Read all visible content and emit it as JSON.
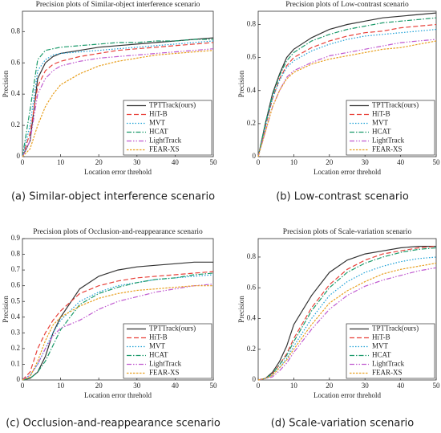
{
  "chart_data": [
    {
      "type": "line",
      "title": "Precision plots of Similar-object interference scenario",
      "caption": "(a) Similar-object interference scenario",
      "x_label": "Location error threhold",
      "y_label": "Precision",
      "x": [
        0,
        2,
        4,
        6,
        8,
        10,
        15,
        20,
        25,
        30,
        35,
        40,
        45,
        50
      ],
      "xlim": [
        0,
        50
      ],
      "xticks": [
        0,
        10,
        20,
        30,
        40,
        50
      ],
      "ylim": [
        0,
        0.93
      ],
      "yticks": [
        0,
        0.2,
        0.4,
        0.6,
        0.8
      ],
      "legend": "lower right",
      "series": [
        {
          "name": "TPTTrack(ours)",
          "color": "#333333",
          "style": "solid",
          "values": [
            0,
            0.1,
            0.5,
            0.6,
            0.64,
            0.66,
            0.68,
            0.7,
            0.71,
            0.72,
            0.73,
            0.74,
            0.75,
            0.76
          ]
        },
        {
          "name": "HiT-B",
          "color": "#e8413a",
          "style": "dashed",
          "values": [
            0,
            0.15,
            0.45,
            0.55,
            0.59,
            0.61,
            0.64,
            0.66,
            0.68,
            0.69,
            0.7,
            0.71,
            0.72,
            0.73
          ]
        },
        {
          "name": "MVT",
          "color": "#1a9fd6",
          "style": "dotted",
          "values": [
            0,
            0.2,
            0.55,
            0.62,
            0.65,
            0.66,
            0.67,
            0.68,
            0.69,
            0.7,
            0.71,
            0.72,
            0.73,
            0.74
          ]
        },
        {
          "name": "HCAT",
          "color": "#1a9a6a",
          "style": "dashdot",
          "values": [
            0,
            0.3,
            0.62,
            0.68,
            0.69,
            0.7,
            0.71,
            0.72,
            0.73,
            0.73,
            0.74,
            0.74,
            0.75,
            0.75
          ]
        },
        {
          "name": "LightTrack",
          "color": "#c05ad0",
          "style": "dashdotdot",
          "values": [
            0,
            0.1,
            0.4,
            0.5,
            0.55,
            0.58,
            0.61,
            0.63,
            0.64,
            0.65,
            0.66,
            0.67,
            0.68,
            0.69
          ]
        },
        {
          "name": "FEAR-XS",
          "color": "#e8a020",
          "style": "shortdash",
          "values": [
            0,
            0.05,
            0.2,
            0.32,
            0.4,
            0.46,
            0.53,
            0.58,
            0.61,
            0.63,
            0.65,
            0.66,
            0.67,
            0.68
          ]
        }
      ]
    },
    {
      "type": "line",
      "title": "Precision plots of Low-contrast scenario",
      "caption": "(b) Low-contrast scenario",
      "x_label": "Location error threhold",
      "y_label": "Precision",
      "x": [
        0,
        2,
        4,
        6,
        8,
        10,
        15,
        20,
        25,
        30,
        35,
        40,
        45,
        50
      ],
      "xlim": [
        0,
        50
      ],
      "xticks": [
        0,
        10,
        20,
        30,
        40,
        50
      ],
      "ylim": [
        0,
        0.88
      ],
      "yticks": [
        0,
        0.2,
        0.4,
        0.6,
        0.8
      ],
      "legend": "lower right",
      "series": [
        {
          "name": "TPTTrack(ours)",
          "color": "#333333",
          "style": "solid",
          "values": [
            0,
            0.2,
            0.38,
            0.5,
            0.6,
            0.65,
            0.72,
            0.77,
            0.8,
            0.82,
            0.84,
            0.85,
            0.86,
            0.87
          ]
        },
        {
          "name": "HiT-B",
          "color": "#e8413a",
          "style": "dashed",
          "values": [
            0,
            0.18,
            0.35,
            0.47,
            0.55,
            0.6,
            0.66,
            0.7,
            0.73,
            0.75,
            0.76,
            0.78,
            0.79,
            0.8
          ]
        },
        {
          "name": "MVT",
          "color": "#1a9fd6",
          "style": "dotted",
          "values": [
            0,
            0.18,
            0.35,
            0.46,
            0.54,
            0.58,
            0.64,
            0.68,
            0.71,
            0.73,
            0.74,
            0.75,
            0.76,
            0.77
          ]
        },
        {
          "name": "HCAT",
          "color": "#1a9a6a",
          "style": "dashdot",
          "values": [
            0,
            0.2,
            0.37,
            0.49,
            0.58,
            0.63,
            0.7,
            0.74,
            0.77,
            0.79,
            0.81,
            0.82,
            0.83,
            0.84
          ]
        },
        {
          "name": "LightTrack",
          "color": "#c05ad0",
          "style": "dashdotdot",
          "values": [
            0,
            0.15,
            0.3,
            0.4,
            0.48,
            0.52,
            0.57,
            0.61,
            0.63,
            0.65,
            0.67,
            0.69,
            0.7,
            0.71
          ]
        },
        {
          "name": "FEAR-XS",
          "color": "#e8a020",
          "style": "shortdash",
          "values": [
            0,
            0.15,
            0.3,
            0.4,
            0.47,
            0.51,
            0.56,
            0.59,
            0.61,
            0.63,
            0.65,
            0.66,
            0.68,
            0.7
          ]
        }
      ]
    },
    {
      "type": "line",
      "title": "Precision plots of Occlusion-and-reappearance scenario",
      "caption": "(c) Occlusion-and-reappearance scenario",
      "x_label": "Location error threhold",
      "y_label": "Precision",
      "x": [
        0,
        2,
        4,
        6,
        8,
        10,
        15,
        20,
        25,
        30,
        35,
        40,
        45,
        50
      ],
      "xlim": [
        0,
        50
      ],
      "xticks": [
        0,
        10,
        20,
        30,
        40,
        50
      ],
      "ylim": [
        0,
        0.9
      ],
      "yticks": [
        0,
        0.1,
        0.2,
        0.3,
        0.4,
        0.5,
        0.6,
        0.7,
        0.8,
        0.9
      ],
      "legend": "lower right",
      "series": [
        {
          "name": "TPTTrack(ours)",
          "color": "#333333",
          "style": "solid",
          "values": [
            0,
            0.01,
            0.05,
            0.15,
            0.3,
            0.4,
            0.58,
            0.66,
            0.7,
            0.72,
            0.73,
            0.74,
            0.75,
            0.75
          ]
        },
        {
          "name": "HiT-B",
          "color": "#e8413a",
          "style": "dashed",
          "values": [
            0,
            0.05,
            0.2,
            0.3,
            0.38,
            0.44,
            0.55,
            0.6,
            0.63,
            0.65,
            0.66,
            0.67,
            0.68,
            0.69
          ]
        },
        {
          "name": "MVT",
          "color": "#1a9fd6",
          "style": "dotted",
          "values": [
            0,
            0.03,
            0.1,
            0.2,
            0.3,
            0.38,
            0.5,
            0.56,
            0.6,
            0.62,
            0.64,
            0.65,
            0.66,
            0.67
          ]
        },
        {
          "name": "HCAT",
          "color": "#1a9a6a",
          "style": "dashdot",
          "values": [
            0,
            0.01,
            0.05,
            0.12,
            0.22,
            0.32,
            0.48,
            0.55,
            0.59,
            0.62,
            0.64,
            0.65,
            0.67,
            0.68
          ]
        },
        {
          "name": "LightTrack",
          "color": "#c05ad0",
          "style": "dashdotdot",
          "values": [
            0,
            0.03,
            0.1,
            0.2,
            0.28,
            0.33,
            0.38,
            0.45,
            0.5,
            0.53,
            0.56,
            0.58,
            0.6,
            0.61
          ]
        },
        {
          "name": "FEAR-XS",
          "color": "#e8a020",
          "style": "shortdash",
          "values": [
            0,
            0.02,
            0.12,
            0.25,
            0.35,
            0.4,
            0.47,
            0.52,
            0.55,
            0.57,
            0.58,
            0.59,
            0.6,
            0.6
          ]
        }
      ]
    },
    {
      "type": "line",
      "title": "Precision plots of Scale-variation scenario",
      "caption": "(d) Scale-variation scenario",
      "x_label": "Location error threhold",
      "y_label": "Precision",
      "x": [
        0,
        2,
        4,
        6,
        8,
        10,
        15,
        20,
        25,
        30,
        35,
        40,
        45,
        50
      ],
      "xlim": [
        0,
        50
      ],
      "xticks": [
        0,
        10,
        20,
        30,
        40,
        50
      ],
      "ylim": [
        0,
        0.92
      ],
      "yticks": [
        0,
        0.2,
        0.4,
        0.6,
        0.8
      ],
      "legend": "lower right",
      "series": [
        {
          "name": "TPTTrack(ours)",
          "color": "#333333",
          "style": "solid",
          "values": [
            0,
            0.01,
            0.05,
            0.12,
            0.22,
            0.36,
            0.55,
            0.7,
            0.78,
            0.82,
            0.84,
            0.86,
            0.87,
            0.87
          ]
        },
        {
          "name": "HiT-B",
          "color": "#e8413a",
          "style": "dashed",
          "values": [
            0,
            0.01,
            0.04,
            0.1,
            0.17,
            0.27,
            0.47,
            0.62,
            0.72,
            0.78,
            0.82,
            0.84,
            0.86,
            0.87
          ]
        },
        {
          "name": "MVT",
          "color": "#1a9fd6",
          "style": "dotted",
          "values": [
            0,
            0.01,
            0.03,
            0.08,
            0.14,
            0.22,
            0.4,
            0.55,
            0.64,
            0.7,
            0.74,
            0.77,
            0.79,
            0.8
          ]
        },
        {
          "name": "HCAT",
          "color": "#1a9a6a",
          "style": "dashdot",
          "values": [
            0,
            0.01,
            0.04,
            0.1,
            0.16,
            0.25,
            0.45,
            0.6,
            0.7,
            0.76,
            0.8,
            0.83,
            0.85,
            0.86
          ]
        },
        {
          "name": "LightTrack",
          "color": "#c05ad0",
          "style": "dashdotdot",
          "values": [
            0,
            0.01,
            0.02,
            0.06,
            0.11,
            0.18,
            0.33,
            0.46,
            0.55,
            0.61,
            0.65,
            0.68,
            0.71,
            0.73
          ]
        },
        {
          "name": "FEAR-XS",
          "color": "#e8a020",
          "style": "shortdash",
          "values": [
            0,
            0.01,
            0.03,
            0.08,
            0.13,
            0.2,
            0.36,
            0.5,
            0.58,
            0.64,
            0.69,
            0.72,
            0.74,
            0.76
          ]
        }
      ]
    }
  ]
}
